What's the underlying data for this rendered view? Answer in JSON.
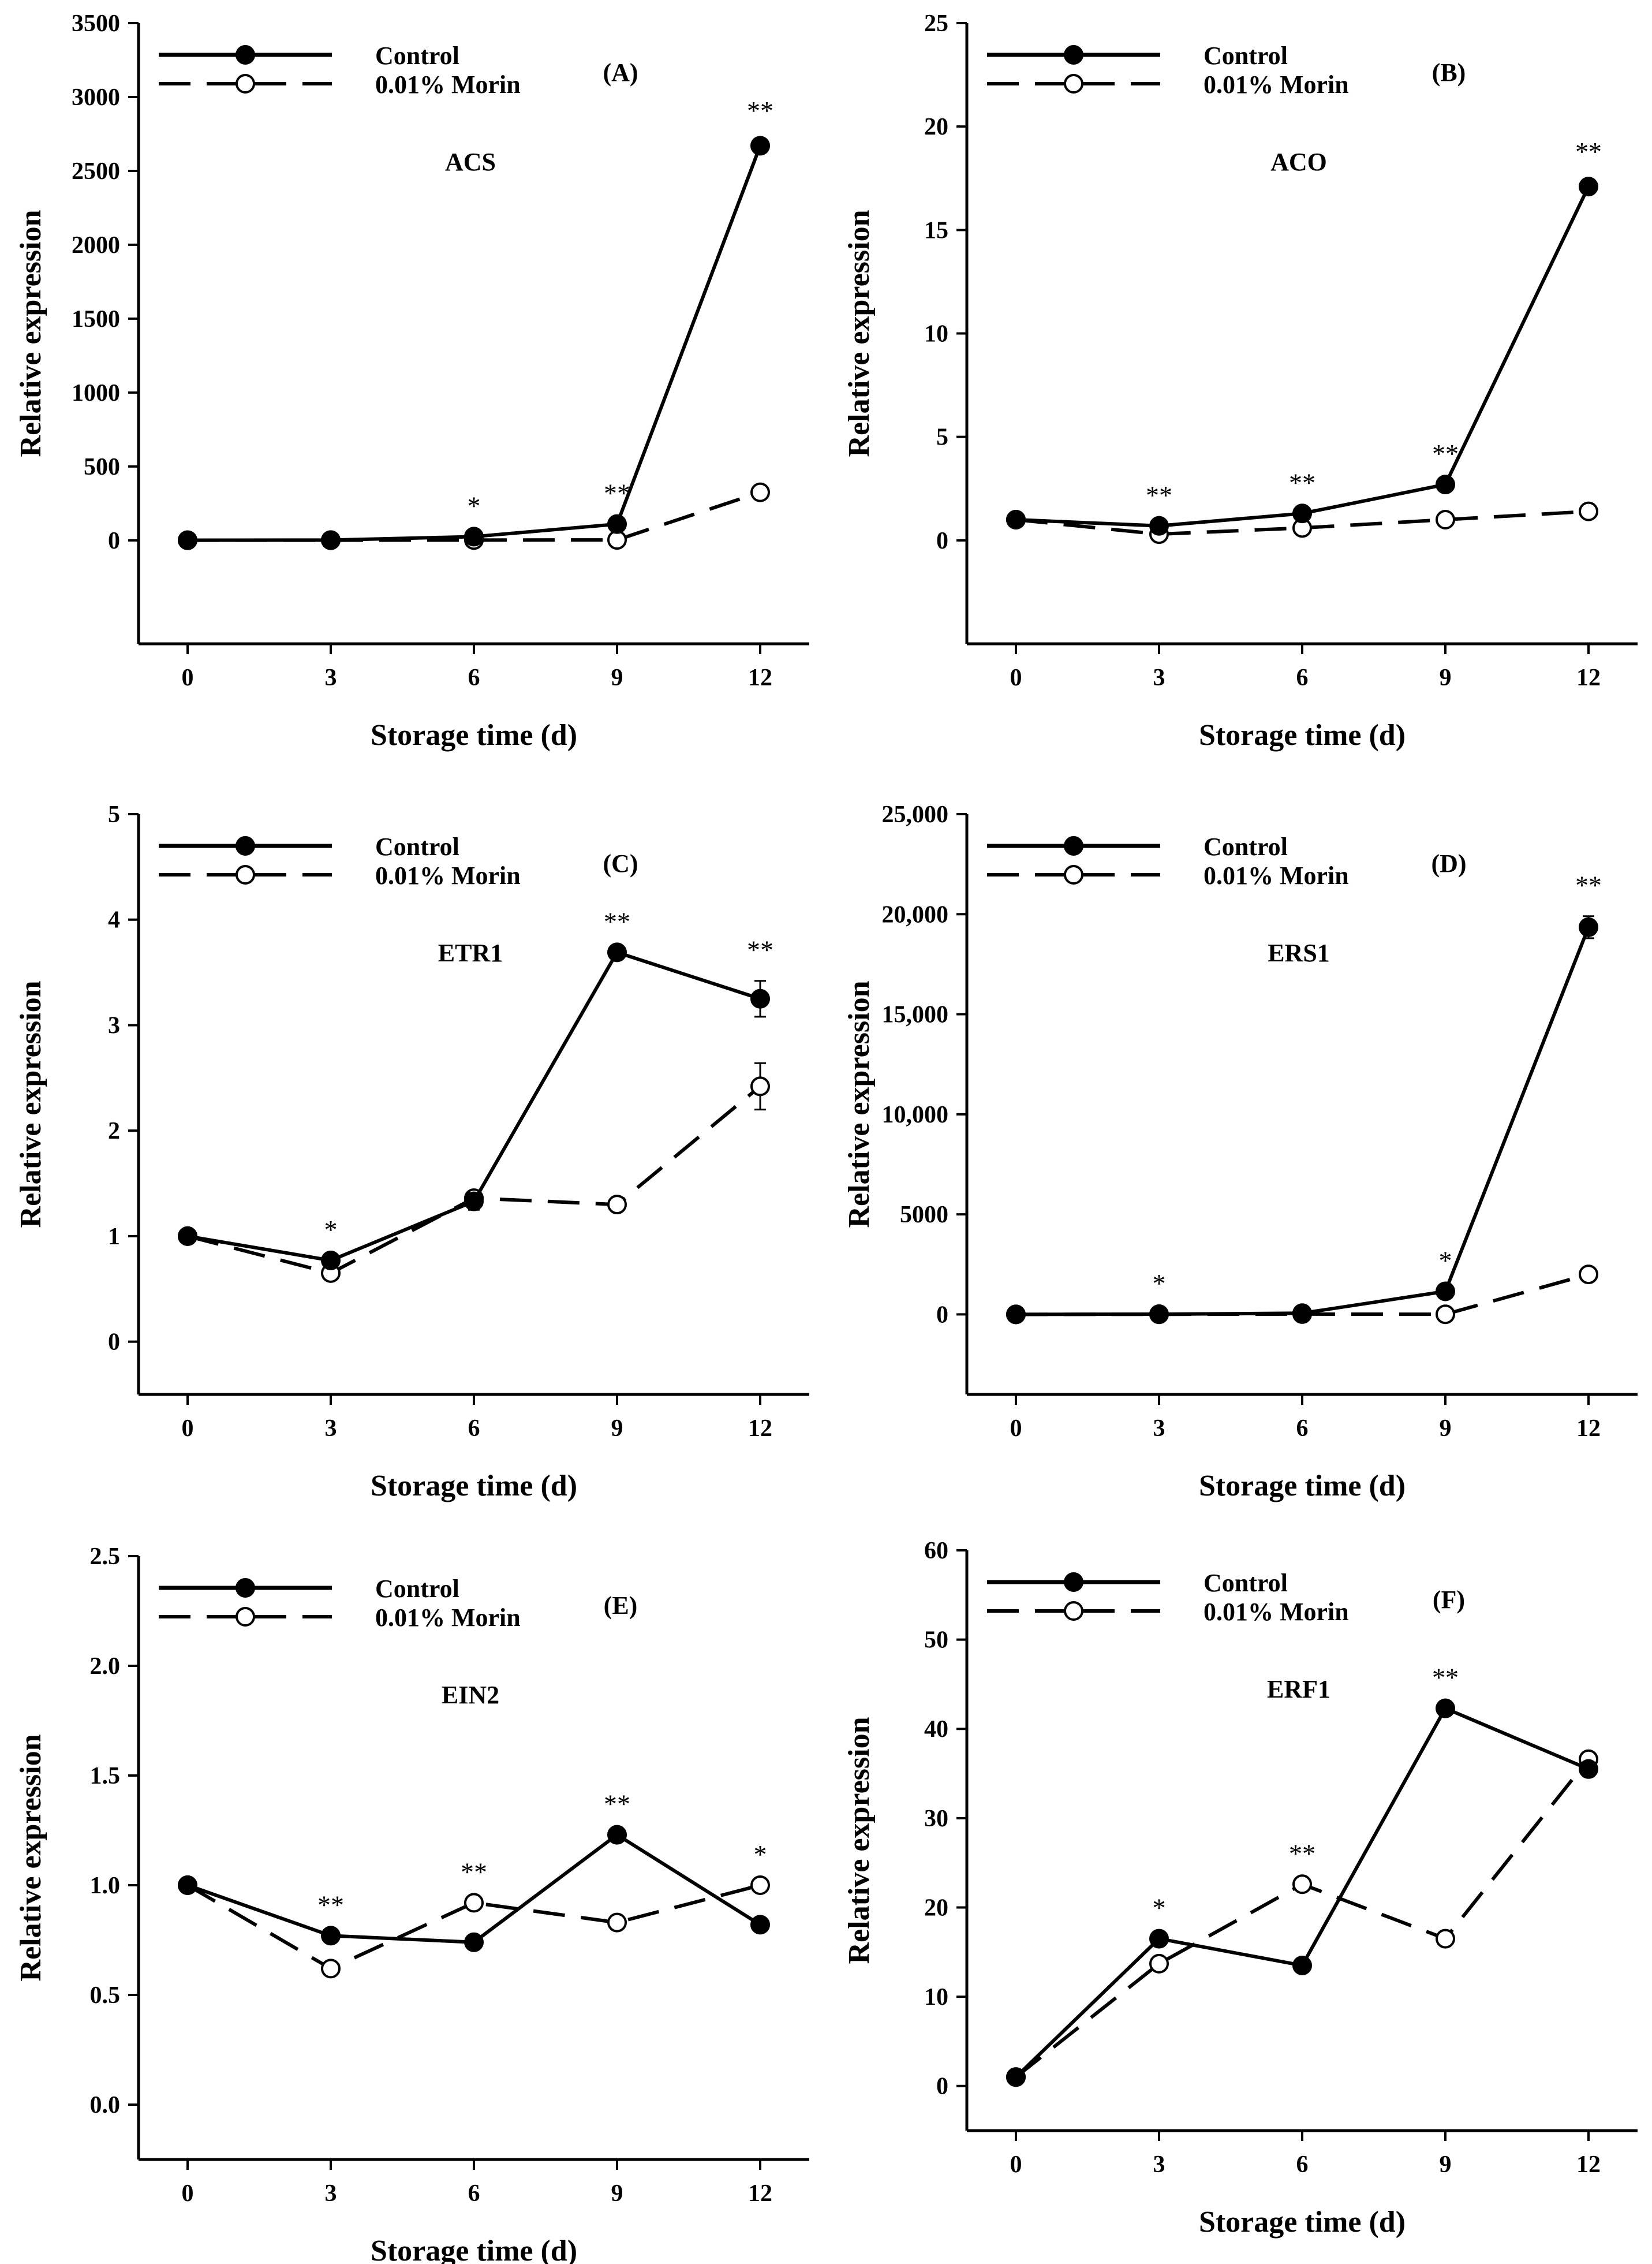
{
  "colors": {
    "control": "#000000",
    "morin": "#ffffff",
    "axis": "#000000"
  },
  "legend": {
    "control": "Control",
    "morin": "0.01% Morin"
  },
  "chart_data": [
    {
      "type": "line",
      "panel": "(A)",
      "gene": "ACS",
      "xlabel": "Storage time (d)",
      "ylabel": "Relative expression",
      "x": [
        0,
        3,
        6,
        9,
        12
      ],
      "xticks": [
        "0",
        "3",
        "6",
        "9",
        "12"
      ],
      "ylim": [
        -700,
        3500
      ],
      "yticks": [
        0,
        500,
        1000,
        1500,
        2000,
        2500,
        3000,
        3500
      ],
      "ytick_labels": [
        "0",
        "500",
        "1000",
        "1500",
        "2000",
        "2500",
        "3000",
        "3500"
      ],
      "series": [
        {
          "name": "Control",
          "values": [
            1,
            2,
            25,
            110,
            2670
          ],
          "errors": [
            0,
            0,
            0,
            0,
            30
          ]
        },
        {
          "name": "0.01% Morin",
          "values": [
            1,
            1,
            2,
            3,
            325
          ],
          "errors": [
            0,
            0,
            0,
            0,
            0
          ]
        }
      ],
      "significance": [
        {
          "x": 6,
          "label": "*",
          "value": 25
        },
        {
          "x": 9,
          "label": "**",
          "value": 110
        },
        {
          "x": 12,
          "label": "**",
          "value": 2700
        }
      ]
    },
    {
      "type": "line",
      "panel": "(B)",
      "gene": "ACO",
      "xlabel": "Storage time (d)",
      "ylabel": "Relative expression",
      "x": [
        0,
        3,
        6,
        9,
        12
      ],
      "xticks": [
        "0",
        "3",
        "6",
        "9",
        "12"
      ],
      "ylim": [
        -5,
        25
      ],
      "yticks": [
        0,
        5,
        10,
        15,
        20,
        25
      ],
      "ytick_labels": [
        "0",
        "5",
        "10",
        "15",
        "20",
        "25"
      ],
      "series": [
        {
          "name": "Control",
          "values": [
            1.0,
            0.7,
            1.3,
            2.7,
            17.1
          ],
          "errors": [
            0,
            0,
            0,
            0,
            0.2
          ]
        },
        {
          "name": "0.01% Morin",
          "values": [
            1.0,
            0.3,
            0.6,
            1.0,
            1.4
          ],
          "errors": [
            0,
            0,
            0,
            0,
            0
          ]
        }
      ],
      "significance": [
        {
          "x": 3,
          "label": "**",
          "value": 0.7
        },
        {
          "x": 6,
          "label": "**",
          "value": 1.3
        },
        {
          "x": 9,
          "label": "**",
          "value": 2.7
        },
        {
          "x": 12,
          "label": "**",
          "value": 17.3
        }
      ]
    },
    {
      "type": "line",
      "panel": "(C)",
      "gene": "ETR1",
      "xlabel": "Storage time (d)",
      "ylabel": "Relative expression",
      "x": [
        0,
        3,
        6,
        9,
        12
      ],
      "xticks": [
        "0",
        "3",
        "6",
        "9",
        "12"
      ],
      "ylim": [
        -0.5,
        5
      ],
      "yticks": [
        0,
        1,
        2,
        3,
        4,
        5
      ],
      "ytick_labels": [
        "0",
        "1",
        "2",
        "3",
        "4",
        "5"
      ],
      "series": [
        {
          "name": "Control",
          "values": [
            1.0,
            0.77,
            1.33,
            3.69,
            3.25
          ],
          "errors": [
            0,
            0,
            0.08,
            0,
            0.17
          ]
        },
        {
          "name": "0.01% Morin",
          "values": [
            1.0,
            0.65,
            1.36,
            1.3,
            2.42
          ],
          "errors": [
            0,
            0,
            0.05,
            0,
            0.22
          ]
        }
      ],
      "significance": [
        {
          "x": 3,
          "label": "*",
          "value": 0.77
        },
        {
          "x": 9,
          "label": "**",
          "value": 3.69
        },
        {
          "x": 12,
          "label": "**",
          "value": 3.42
        }
      ]
    },
    {
      "type": "line",
      "panel": "(D)",
      "gene": "ERS1",
      "xlabel": "Storage time (d)",
      "ylabel": "Relative expression",
      "x": [
        0,
        3,
        6,
        9,
        12
      ],
      "xticks": [
        "0",
        "3",
        "6",
        "9",
        "12"
      ],
      "ylim": [
        -4000,
        25000
      ],
      "yticks": [
        0,
        5000,
        10000,
        15000,
        20000,
        25000
      ],
      "ytick_labels": [
        "0",
        "5000",
        "10,000",
        "15,000",
        "20,000",
        "25,000"
      ],
      "series": [
        {
          "name": "Control",
          "values": [
            1,
            10,
            60,
            1150,
            19350
          ],
          "errors": [
            0,
            0,
            0,
            0,
            550
          ]
        },
        {
          "name": "0.01% Morin",
          "values": [
            1,
            3,
            15,
            5,
            2000
          ],
          "errors": [
            0,
            0,
            0,
            0,
            0
          ]
        }
      ],
      "significance": [
        {
          "x": 3,
          "label": "*",
          "value": 10
        },
        {
          "x": 9,
          "label": "*",
          "value": 1150
        },
        {
          "x": 12,
          "label": "**",
          "value": 19900
        }
      ]
    },
    {
      "type": "line",
      "panel": "(E)",
      "gene": "EIN2",
      "xlabel": "Storage time (d)",
      "ylabel": "Relative expression",
      "x": [
        0,
        3,
        6,
        9,
        12
      ],
      "xticks": [
        "0",
        "3",
        "6",
        "9",
        "12"
      ],
      "ylim": [
        -0.25,
        2.5
      ],
      "yticks": [
        0,
        0.5,
        1.0,
        1.5,
        2.0,
        2.5
      ],
      "ytick_labels": [
        "0.0",
        "0.5",
        "1.0",
        "1.5",
        "2.0",
        "2.5"
      ],
      "series": [
        {
          "name": "Control",
          "values": [
            1.0,
            0.77,
            0.74,
            1.23,
            0.82
          ],
          "errors": [
            0,
            0,
            0,
            0,
            0
          ]
        },
        {
          "name": "0.01% Morin",
          "values": [
            1.0,
            0.62,
            0.92,
            0.83,
            1.0
          ],
          "errors": [
            0,
            0,
            0,
            0,
            0
          ]
        }
      ],
      "significance": [
        {
          "x": 3,
          "label": "**",
          "value": 0.77
        },
        {
          "x": 6,
          "label": "**",
          "value": 0.92
        },
        {
          "x": 9,
          "label": "**",
          "value": 1.23
        },
        {
          "x": 12,
          "label": "*",
          "value": 1.0
        }
      ]
    },
    {
      "type": "line",
      "panel": "(F)",
      "gene": "ERF1",
      "xlabel": "Storage time (d)",
      "ylabel": "Relative expression",
      "x": [
        0,
        3,
        6,
        9,
        12
      ],
      "xticks": [
        "0",
        "3",
        "6",
        "9",
        "12"
      ],
      "ylim": [
        -5,
        60
      ],
      "yticks": [
        0,
        10,
        20,
        30,
        40,
        50,
        60
      ],
      "ytick_labels": [
        "0",
        "10",
        "20",
        "30",
        "40",
        "50",
        "60"
      ],
      "series": [
        {
          "name": "Control",
          "values": [
            1.0,
            16.5,
            13.5,
            42.3,
            35.5
          ],
          "errors": [
            0,
            0,
            0,
            0,
            0
          ]
        },
        {
          "name": "0.01% Morin",
          "values": [
            1.0,
            13.7,
            22.6,
            16.5,
            36.6
          ],
          "errors": [
            0,
            0,
            0,
            0,
            0
          ]
        }
      ],
      "significance": [
        {
          "x": 3,
          "label": "*",
          "value": 16.5
        },
        {
          "x": 6,
          "label": "**",
          "value": 22.6
        },
        {
          "x": 9,
          "label": "**",
          "value": 42.3
        }
      ]
    }
  ]
}
